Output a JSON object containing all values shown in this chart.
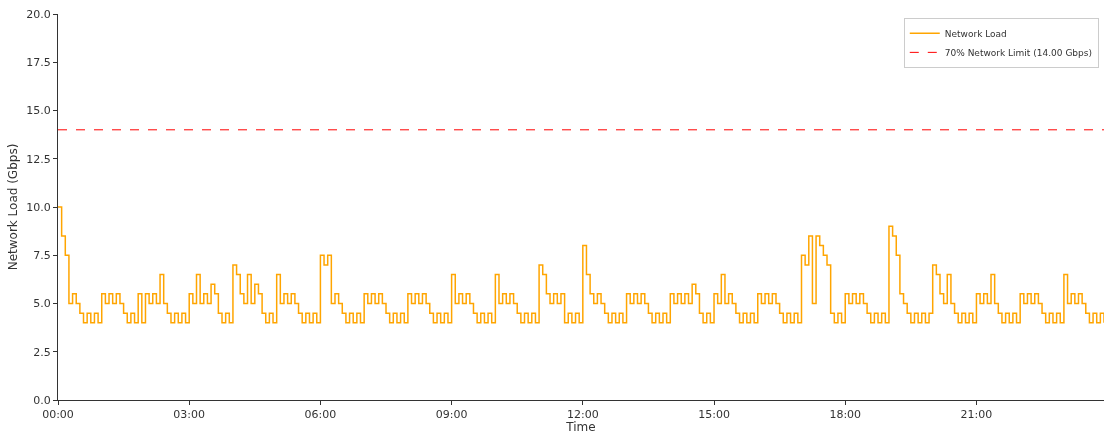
{
  "chart_data": {
    "type": "step",
    "xlabel": "Time",
    "ylabel": "Network Load (Gbps)",
    "x": [
      0,
      0.0833,
      0.1667,
      0.25,
      0.3333,
      0.4167,
      0.5,
      0.5833,
      0.6667,
      0.75,
      0.8333,
      0.9167,
      1,
      1.0833,
      1.1667,
      1.25,
      1.3333,
      1.4167,
      1.5,
      1.5833,
      1.6667,
      1.75,
      1.8333,
      1.9167,
      2,
      2.0833,
      2.1667,
      2.25,
      2.3333,
      2.4167,
      2.5,
      2.5833,
      2.6667,
      2.75,
      2.8333,
      2.9167,
      3,
      3.0833,
      3.1667,
      3.25,
      3.3333,
      3.4167,
      3.5,
      3.5833,
      3.6667,
      3.75,
      3.8333,
      3.9167,
      4,
      4.0833,
      4.1667,
      4.25,
      4.3333,
      4.4167,
      4.5,
      4.5833,
      4.6667,
      4.75,
      4.8333,
      4.9167,
      5,
      5.0833,
      5.1667,
      5.25,
      5.3333,
      5.4167,
      5.5,
      5.5833,
      5.6667,
      5.75,
      5.8333,
      5.9167,
      6,
      6.0833,
      6.1667,
      6.25,
      6.3333,
      6.4167,
      6.5,
      6.5833,
      6.6667,
      6.75,
      6.8333,
      6.9167,
      7,
      7.0833,
      7.1667,
      7.25,
      7.3333,
      7.4167,
      7.5,
      7.5833,
      7.6667,
      7.75,
      7.8333,
      7.9167,
      8,
      8.0833,
      8.1667,
      8.25,
      8.3333,
      8.4167,
      8.5,
      8.5833,
      8.6667,
      8.75,
      8.8333,
      8.9167,
      9,
      9.0833,
      9.1667,
      9.25,
      9.3333,
      9.4167,
      9.5,
      9.5833,
      9.6667,
      9.75,
      9.8333,
      9.9167,
      10,
      10.0833,
      10.1667,
      10.25,
      10.3333,
      10.4167,
      10.5,
      10.5833,
      10.6667,
      10.75,
      10.8333,
      10.9167,
      11,
      11.0833,
      11.1667,
      11.25,
      11.3333,
      11.4167,
      11.5,
      11.5833,
      11.6667,
      11.75,
      11.8333,
      11.9167,
      12,
      12.0833,
      12.1667,
      12.25,
      12.3333,
      12.4167,
      12.5,
      12.5833,
      12.6667,
      12.75,
      12.8333,
      12.9167,
      13,
      13.0833,
      13.1667,
      13.25,
      13.3333,
      13.4167,
      13.5,
      13.5833,
      13.6667,
      13.75,
      13.8333,
      13.9167,
      14,
      14.0833,
      14.1667,
      14.25,
      14.3333,
      14.4167,
      14.5,
      14.5833,
      14.6667,
      14.75,
      14.8333,
      14.9167,
      15,
      15.0833,
      15.1667,
      15.25,
      15.3333,
      15.4167,
      15.5,
      15.5833,
      15.6667,
      15.75,
      15.8333,
      15.9167,
      16,
      16.0833,
      16.1667,
      16.25,
      16.3333,
      16.4167,
      16.5,
      16.5833,
      16.6667,
      16.75,
      16.8333,
      16.9167,
      17,
      17.0833,
      17.1667,
      17.25,
      17.3333,
      17.4167,
      17.5,
      17.5833,
      17.6667,
      17.75,
      17.8333,
      17.9167,
      18,
      18.0833,
      18.1667,
      18.25,
      18.3333,
      18.4167,
      18.5,
      18.5833,
      18.6667,
      18.75,
      18.8333,
      18.9167,
      19,
      19.0833,
      19.1667,
      19.25,
      19.3333,
      19.4167,
      19.5,
      19.5833,
      19.6667,
      19.75,
      19.8333,
      19.9167,
      20,
      20.0833,
      20.1667,
      20.25,
      20.3333,
      20.4167,
      20.5,
      20.5833,
      20.6667,
      20.75,
      20.8333,
      20.9167,
      21,
      21.0833,
      21.1667,
      21.25,
      21.3333,
      21.4167,
      21.5,
      21.5833,
      21.6667,
      21.75,
      21.8333,
      21.9167,
      22,
      22.0833,
      22.1667,
      22.25,
      22.3333,
      22.4167,
      22.5,
      22.5833,
      22.6667,
      22.75,
      22.8333,
      22.9167,
      23,
      23.0833,
      23.1667,
      23.25,
      23.3333,
      23.4167,
      23.5,
      23.5833,
      23.6667,
      23.75,
      23.8333,
      23.9167
    ],
    "series": [
      {
        "name": "Network Load",
        "color": "#ffa500",
        "values": [
          10,
          8.5,
          7.5,
          5,
          5.5,
          5,
          4.5,
          4,
          4.5,
          4,
          4.5,
          4,
          5.5,
          5,
          5.5,
          5,
          5.5,
          5,
          4.5,
          4,
          4.5,
          4,
          5.5,
          4,
          5.5,
          5,
          5.5,
          5,
          6.5,
          5,
          4.5,
          4,
          4.5,
          4,
          4.5,
          4,
          5.5,
          5,
          6.5,
          5,
          5.5,
          5,
          6,
          5.5,
          4.5,
          4,
          4.5,
          4,
          7,
          6.5,
          5.5,
          5,
          6.5,
          5,
          6,
          5.5,
          4.5,
          4,
          4.5,
          4,
          6.5,
          5,
          5.5,
          5,
          5.5,
          5,
          4.5,
          4,
          4.5,
          4,
          4.5,
          4,
          7.5,
          7,
          7.5,
          5,
          5.5,
          5,
          4.5,
          4,
          4.5,
          4,
          4.5,
          4,
          5.5,
          5,
          5.5,
          5,
          5.5,
          5,
          4.5,
          4,
          4.5,
          4,
          4.5,
          4,
          5.5,
          5,
          5.5,
          5,
          5.5,
          5,
          4.5,
          4,
          4.5,
          4,
          4.5,
          4,
          6.5,
          5,
          5.5,
          5,
          5.5,
          5,
          4.5,
          4,
          4.5,
          4,
          4.5,
          4,
          6.5,
          5,
          5.5,
          5,
          5.5,
          5,
          4.5,
          4,
          4.5,
          4,
          4.5,
          4,
          7,
          6.5,
          5.5,
          5,
          5.5,
          5,
          5.5,
          4,
          4.5,
          4,
          4.5,
          4,
          8,
          6.5,
          5.5,
          5,
          5.5,
          5,
          4.5,
          4,
          4.5,
          4,
          4.5,
          4,
          5.5,
          5,
          5.5,
          5,
          5.5,
          5,
          4.5,
          4,
          4.5,
          4,
          4.5,
          4,
          5.5,
          5,
          5.5,
          5,
          5.5,
          5,
          6,
          5.5,
          4.5,
          4,
          4.5,
          4,
          5.5,
          5,
          6.5,
          5,
          5.5,
          5,
          4.5,
          4,
          4.5,
          4,
          4.5,
          4,
          5.5,
          5,
          5.5,
          5,
          5.5,
          5,
          4.5,
          4,
          4.5,
          4,
          4.5,
          4,
          7.5,
          7,
          8.5,
          5,
          8.5,
          8,
          7.5,
          7,
          4.5,
          4,
          4.5,
          4,
          5.5,
          5,
          5.5,
          5,
          5.5,
          5,
          4.5,
          4,
          4.5,
          4,
          4.5,
          4,
          9,
          8.5,
          7.5,
          5.5,
          5,
          4.5,
          4,
          4.5,
          4,
          4.5,
          4,
          4.5,
          7,
          6.5,
          5.5,
          5,
          6.5,
          5,
          4.5,
          4,
          4.5,
          4,
          4.5,
          4,
          5.5,
          5,
          5.5,
          5,
          6.5,
          5,
          4.5,
          4,
          4.5,
          4,
          4.5,
          4,
          5.5,
          5,
          5.5,
          5,
          5.5,
          5,
          4.5,
          4,
          4.5,
          4,
          4.5,
          4,
          6.5,
          5,
          5.5,
          5,
          5.5,
          5,
          4.5,
          4,
          4.5,
          4,
          4.5,
          4
        ]
      }
    ],
    "ref_lines": [
      {
        "axis": "y",
        "value": 14,
        "label": "70% Network Limit (14.00 Gbps)",
        "color": "#ff0000",
        "line_style": "dashed"
      }
    ],
    "xlim": [
      0,
      23.9167
    ],
    "xticks": [
      {
        "value": 0,
        "label": "00:00"
      },
      {
        "value": 3,
        "label": "03:00"
      },
      {
        "value": 6,
        "label": "06:00"
      },
      {
        "value": 9,
        "label": "09:00"
      },
      {
        "value": 12,
        "label": "12:00"
      },
      {
        "value": 15,
        "label": "15:00"
      },
      {
        "value": 18,
        "label": "18:00"
      },
      {
        "value": 21,
        "label": "21:00"
      }
    ],
    "ylim": [
      0,
      20
    ],
    "yticks": [
      {
        "value": 0,
        "label": "0.0"
      },
      {
        "value": 2.5,
        "label": "2.5"
      },
      {
        "value": 5,
        "label": "5.0"
      },
      {
        "value": 7.5,
        "label": "7.5"
      },
      {
        "value": 10,
        "label": "10.0"
      },
      {
        "value": 12.5,
        "label": "12.5"
      },
      {
        "value": 15,
        "label": "15.0"
      },
      {
        "value": 17.5,
        "label": "17.5"
      },
      {
        "value": 20,
        "label": "20.0"
      }
    ],
    "grid": false,
    "legend": "top right",
    "line_style": "solid",
    "marker": "none"
  }
}
